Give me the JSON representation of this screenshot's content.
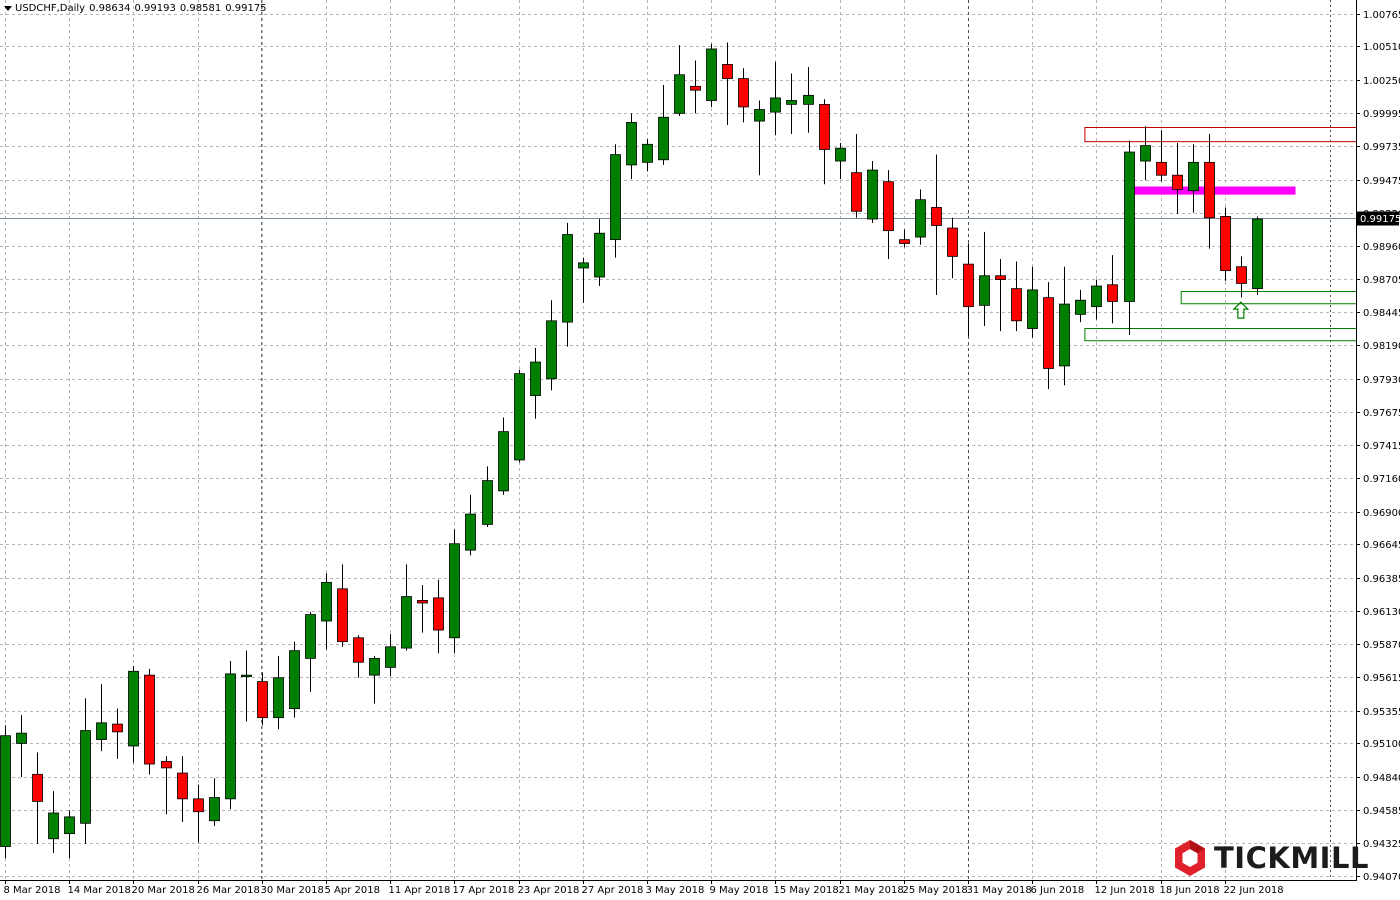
{
  "header": {
    "symbol": "USDCHF,Daily",
    "open": "0.98634",
    "high": "0.99193",
    "low": "0.98581",
    "close": "0.99175"
  },
  "logo": {
    "text": "TICKMILL",
    "color": "#e0202a"
  },
  "colors": {
    "bull": "#008000",
    "bear": "#ff0000",
    "grid": "#b4b4b4",
    "bid_line": "#778899",
    "magenta_zone": "#ff00ff",
    "resistance_zone": "#c80000",
    "support_zone": "#008000"
  },
  "chart_data": {
    "type": "candlestick",
    "symbol": "USDCHF",
    "timeframe": "Daily",
    "ylim": [
      0.9404,
      1.0087
    ],
    "y_ticks": [
      "1.00765",
      "1.00510",
      "1.00250",
      "0.99995",
      "0.99735",
      "0.99475",
      "0.99220",
      "0.98960",
      "0.98705",
      "0.98445",
      "0.98190",
      "0.97930",
      "0.97675",
      "0.97415",
      "0.97160",
      "0.96900",
      "0.96645",
      "0.96385",
      "0.96130",
      "0.95870",
      "0.95615",
      "0.95355",
      "0.95100",
      "0.94840",
      "0.94585",
      "0.94325",
      "0.94070"
    ],
    "x_ticks": [
      {
        "label": "8 Mar 2018",
        "index": 0
      },
      {
        "label": "14 Mar 2018",
        "index": 4
      },
      {
        "label": "20 Mar 2018",
        "index": 8
      },
      {
        "label": "26 Mar 2018",
        "index": 12
      },
      {
        "label": "30 Mar 2018",
        "index": 16
      },
      {
        "label": "5 Apr 2018",
        "index": 20
      },
      {
        "label": "11 Apr 2018",
        "index": 24
      },
      {
        "label": "17 Apr 2018",
        "index": 28
      },
      {
        "label": "23 Apr 2018",
        "index": 32
      },
      {
        "label": "27 Apr 2018",
        "index": 36
      },
      {
        "label": "3 May 2018",
        "index": 40
      },
      {
        "label": "9 May 2018",
        "index": 44
      },
      {
        "label": "15 May 2018",
        "index": 48
      },
      {
        "label": "21 May 2018",
        "index": 52
      },
      {
        "label": "25 May 2018",
        "index": 56
      },
      {
        "label": "31 May 2018",
        "index": 60
      },
      {
        "label": "6 Jun 2018",
        "index": 64
      },
      {
        "label": "12 Jun 2018",
        "index": 68
      },
      {
        "label": "18 Jun 2018",
        "index": 72
      },
      {
        "label": "22 Jun 2018",
        "index": 76
      }
    ],
    "current_price": "0.99175",
    "candles": [
      {
        "o": 0.943,
        "h": 0.9524,
        "l": 0.9421,
        "c": 0.9516
      },
      {
        "o": 0.951,
        "h": 0.9532,
        "l": 0.9484,
        "c": 0.9518
      },
      {
        "o": 0.9486,
        "h": 0.9503,
        "l": 0.9432,
        "c": 0.9465
      },
      {
        "o": 0.9436,
        "h": 0.9473,
        "l": 0.9425,
        "c": 0.9456
      },
      {
        "o": 0.944,
        "h": 0.9458,
        "l": 0.9421,
        "c": 0.9453
      },
      {
        "o": 0.9448,
        "h": 0.9545,
        "l": 0.9432,
        "c": 0.952
      },
      {
        "o": 0.9513,
        "h": 0.9556,
        "l": 0.9504,
        "c": 0.9526
      },
      {
        "o": 0.9525,
        "h": 0.9537,
        "l": 0.9498,
        "c": 0.9519
      },
      {
        "o": 0.9508,
        "h": 0.957,
        "l": 0.9495,
        "c": 0.9566
      },
      {
        "o": 0.9563,
        "h": 0.9568,
        "l": 0.9486,
        "c": 0.9494
      },
      {
        "o": 0.9496,
        "h": 0.95,
        "l": 0.9455,
        "c": 0.9491
      },
      {
        "o": 0.9487,
        "h": 0.95,
        "l": 0.9449,
        "c": 0.9467
      },
      {
        "o": 0.9467,
        "h": 0.9478,
        "l": 0.9433,
        "c": 0.9457
      },
      {
        "o": 0.945,
        "h": 0.9483,
        "l": 0.9446,
        "c": 0.9468
      },
      {
        "o": 0.9467,
        "h": 0.9574,
        "l": 0.9459,
        "c": 0.9564
      },
      {
        "o": 0.9563,
        "h": 0.9582,
        "l": 0.9527,
        "c": 0.9563
      },
      {
        "o": 0.9558,
        "h": 0.9565,
        "l": 0.9524,
        "c": 0.953
      },
      {
        "o": 0.953,
        "h": 0.9578,
        "l": 0.9521,
        "c": 0.9561
      },
      {
        "o": 0.9537,
        "h": 0.9589,
        "l": 0.953,
        "c": 0.9582
      },
      {
        "o": 0.9576,
        "h": 0.9612,
        "l": 0.955,
        "c": 0.961
      },
      {
        "o": 0.9605,
        "h": 0.9642,
        "l": 0.9583,
        "c": 0.9635
      },
      {
        "o": 0.963,
        "h": 0.9649,
        "l": 0.9585,
        "c": 0.9589
      },
      {
        "o": 0.9592,
        "h": 0.9594,
        "l": 0.9561,
        "c": 0.9573
      },
      {
        "o": 0.9563,
        "h": 0.9578,
        "l": 0.9541,
        "c": 0.9576
      },
      {
        "o": 0.9569,
        "h": 0.9595,
        "l": 0.9562,
        "c": 0.9585
      },
      {
        "o": 0.9584,
        "h": 0.9649,
        "l": 0.9582,
        "c": 0.9624
      },
      {
        "o": 0.9621,
        "h": 0.9633,
        "l": 0.9596,
        "c": 0.9619
      },
      {
        "o": 0.9623,
        "h": 0.9637,
        "l": 0.958,
        "c": 0.9598
      },
      {
        "o": 0.9592,
        "h": 0.9676,
        "l": 0.958,
        "c": 0.9665
      },
      {
        "o": 0.966,
        "h": 0.9703,
        "l": 0.9656,
        "c": 0.9688
      },
      {
        "o": 0.968,
        "h": 0.9725,
        "l": 0.9678,
        "c": 0.9714
      },
      {
        "o": 0.9706,
        "h": 0.9763,
        "l": 0.9703,
        "c": 0.9752
      },
      {
        "o": 0.973,
        "h": 0.98,
        "l": 0.9728,
        "c": 0.9797
      },
      {
        "o": 0.978,
        "h": 0.9817,
        "l": 0.9762,
        "c": 0.9806
      },
      {
        "o": 0.9793,
        "h": 0.9854,
        "l": 0.9784,
        "c": 0.9838
      },
      {
        "o": 0.9837,
        "h": 0.9914,
        "l": 0.9818,
        "c": 0.9905
      },
      {
        "o": 0.9879,
        "h": 0.9887,
        "l": 0.9852,
        "c": 0.9883
      },
      {
        "o": 0.9872,
        "h": 0.9917,
        "l": 0.9865,
        "c": 0.9906
      },
      {
        "o": 0.9901,
        "h": 0.9975,
        "l": 0.9887,
        "c": 0.9967
      },
      {
        "o": 0.9959,
        "h": 0.9999,
        "l": 0.9948,
        "c": 0.9992
      },
      {
        "o": 0.9961,
        "h": 0.9979,
        "l": 0.9954,
        "c": 0.9975
      },
      {
        "o": 0.9963,
        "h": 1.0021,
        "l": 0.9959,
        "c": 0.9996
      },
      {
        "o": 0.9999,
        "h": 1.0052,
        "l": 0.9997,
        "c": 1.0029
      },
      {
        "o": 1.002,
        "h": 1.004,
        "l": 0.9999,
        "c": 1.0017
      },
      {
        "o": 1.0009,
        "h": 1.0053,
        "l": 1.0004,
        "c": 1.0049
      },
      {
        "o": 1.0037,
        "h": 1.0054,
        "l": 0.999,
        "c": 1.0026
      },
      {
        "o": 1.0026,
        "h": 1.0034,
        "l": 0.9992,
        "c": 1.0004
      },
      {
        "o": 0.9993,
        "h": 1.0009,
        "l": 0.9951,
        "c": 1.0002
      },
      {
        "o": 1.0,
        "h": 1.0039,
        "l": 0.9982,
        "c": 1.0011
      },
      {
        "o": 1.0006,
        "h": 1.003,
        "l": 0.9983,
        "c": 1.0009
      },
      {
        "o": 1.0006,
        "h": 1.0035,
        "l": 0.9984,
        "c": 1.0013
      },
      {
        "o": 1.0006,
        "h": 1.001,
        "l": 0.9944,
        "c": 0.9971
      },
      {
        "o": 0.9962,
        "h": 0.9976,
        "l": 0.9948,
        "c": 0.9972
      },
      {
        "o": 0.9953,
        "h": 0.9983,
        "l": 0.9918,
        "c": 0.9923
      },
      {
        "o": 0.9917,
        "h": 0.9962,
        "l": 0.9914,
        "c": 0.9955
      },
      {
        "o": 0.9946,
        "h": 0.9955,
        "l": 0.9886,
        "c": 0.9908
      },
      {
        "o": 0.9901,
        "h": 0.9909,
        "l": 0.9895,
        "c": 0.9898
      },
      {
        "o": 0.9903,
        "h": 0.994,
        "l": 0.9897,
        "c": 0.9932
      },
      {
        "o": 0.9926,
        "h": 0.9967,
        "l": 0.9858,
        "c": 0.9912
      },
      {
        "o": 0.991,
        "h": 0.9918,
        "l": 0.9871,
        "c": 0.9888
      },
      {
        "o": 0.9882,
        "h": 0.9898,
        "l": 0.9826,
        "c": 0.9849
      },
      {
        "o": 0.985,
        "h": 0.9907,
        "l": 0.9834,
        "c": 0.9873
      },
      {
        "o": 0.9873,
        "h": 0.9886,
        "l": 0.983,
        "c": 0.987
      },
      {
        "o": 0.9863,
        "h": 0.9884,
        "l": 0.983,
        "c": 0.9838
      },
      {
        "o": 0.9832,
        "h": 0.988,
        "l": 0.9825,
        "c": 0.9862
      },
      {
        "o": 0.9856,
        "h": 0.9868,
        "l": 0.9785,
        "c": 0.9801
      },
      {
        "o": 0.9803,
        "h": 0.988,
        "l": 0.9788,
        "c": 0.9851
      },
      {
        "o": 0.9843,
        "h": 0.9862,
        "l": 0.9837,
        "c": 0.9854
      },
      {
        "o": 0.9849,
        "h": 0.987,
        "l": 0.9839,
        "c": 0.9865
      },
      {
        "o": 0.9866,
        "h": 0.9889,
        "l": 0.9836,
        "c": 0.9853
      },
      {
        "o": 0.9853,
        "h": 0.9978,
        "l": 0.9827,
        "c": 0.9969
      },
      {
        "o": 0.9962,
        "h": 0.9989,
        "l": 0.9947,
        "c": 0.9974
      },
      {
        "o": 0.9961,
        "h": 0.9986,
        "l": 0.9946,
        "c": 0.9951
      },
      {
        "o": 0.9951,
        "h": 0.9976,
        "l": 0.9921,
        "c": 0.994
      },
      {
        "o": 0.9939,
        "h": 0.9975,
        "l": 0.9922,
        "c": 0.9961
      },
      {
        "o": 0.9961,
        "h": 0.9983,
        "l": 0.9894,
        "c": 0.9918
      },
      {
        "o": 0.9919,
        "h": 0.9926,
        "l": 0.9869,
        "c": 0.9877
      },
      {
        "o": 0.988,
        "h": 0.9888,
        "l": 0.9856,
        "c": 0.9867
      },
      {
        "o": 0.9863,
        "h": 0.9919,
        "l": 0.9858,
        "c": 0.9917
      }
    ],
    "zones": [
      {
        "name": "resistance-zone",
        "from_index": 68,
        "to_index": 81,
        "top": 0.99885,
        "bottom": 0.99775,
        "style": "outline-red"
      },
      {
        "name": "magenta-zone",
        "from_index": 71,
        "to_index": 80,
        "top": 0.99425,
        "bottom": 0.99362,
        "style": "fill-magenta"
      },
      {
        "name": "support-zone-upper",
        "from_index": 74,
        "to_index": 81,
        "top": 0.98615,
        "bottom": 0.9852,
        "style": "outline-green"
      },
      {
        "name": "support-zone-lower",
        "from_index": 68,
        "to_index": 81,
        "top": 0.98325,
        "bottom": 0.9823,
        "style": "outline-green"
      }
    ],
    "annotations": [
      {
        "type": "up-arrow",
        "index": 77,
        "price": 0.98455,
        "color": "#008000"
      }
    ]
  }
}
